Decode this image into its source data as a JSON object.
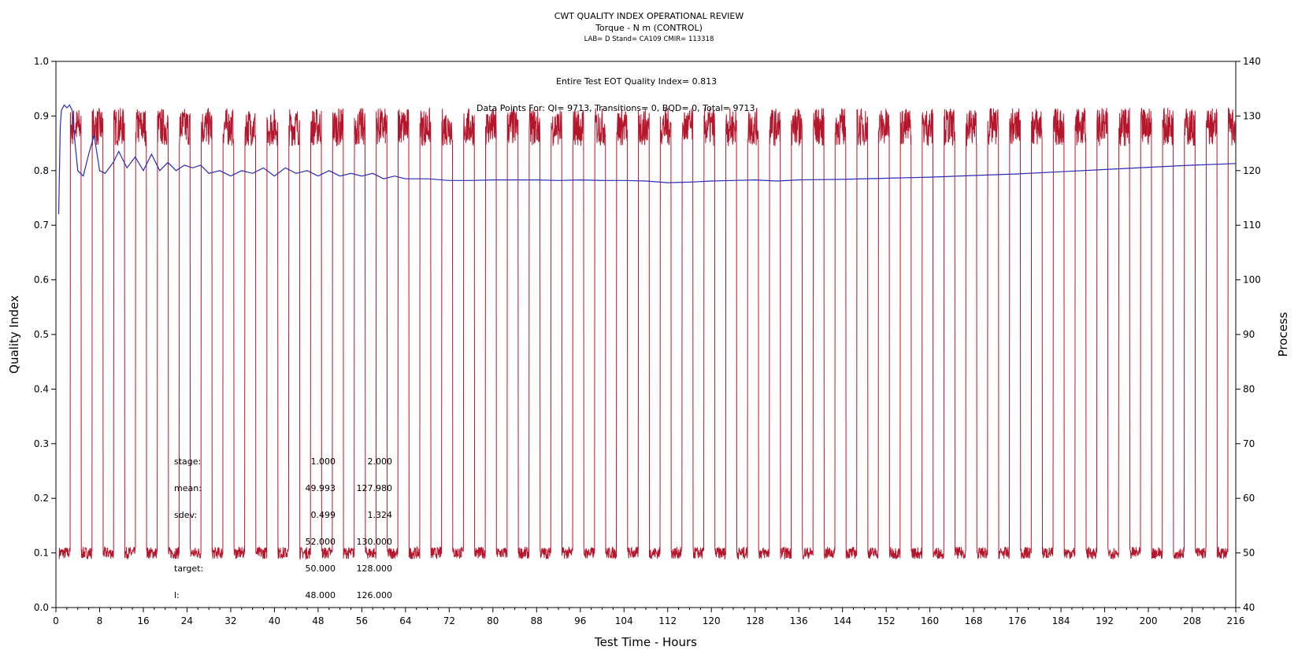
{
  "chart_data": {
    "type": "line",
    "title": "CWT QUALITY INDEX OPERATIONAL REVIEW",
    "subtitle": "Torque - N m (CONTROL)",
    "subtitle2": "LAB= D Stand= CA109 CMIR= 113318",
    "xlabel": "Test Time - Hours",
    "ylabel": "Quality Index",
    "y2label": "Process",
    "xlim": [
      0,
      216
    ],
    "ylim": [
      0,
      1.0
    ],
    "y2lim": [
      40,
      140
    ],
    "xticks": [
      "0",
      "8",
      "16",
      "24",
      "32",
      "40",
      "48",
      "56",
      "64",
      "72",
      "80",
      "88",
      "96",
      "104",
      "112",
      "120",
      "128",
      "136",
      "144",
      "152",
      "160",
      "168",
      "176",
      "184",
      "192",
      "200",
      "208",
      "216"
    ],
    "yticks": [
      "0.0",
      "0.1",
      "0.2",
      "0.3",
      "0.4",
      "0.5",
      "0.6",
      "0.7",
      "0.8",
      "0.9",
      "1.0"
    ],
    "y2ticks": [
      "40",
      "50",
      "60",
      "70",
      "80",
      "90",
      "100",
      "110",
      "120",
      "130",
      "140"
    ],
    "grid": false,
    "annotations": {
      "qi_summary": "Entire Test EOT Quality Index=  0.813",
      "data_points": "Data Points For: QI=  9713, Transitions=    0, BQD=    0, Total=  9713"
    },
    "stats_table": [
      {
        "label": "stage:",
        "v1": "1.000",
        "v2": "2.000"
      },
      {
        "label": "mean:",
        "v1": "49.993",
        "v2": "127.980"
      },
      {
        "label": "sdev:",
        "v1": "0.499",
        "v2": "1.324"
      },
      {
        "label": "",
        "v1": "52.000",
        "v2": "130.000"
      },
      {
        "label": "target:",
        "v1": "50.000",
        "v2": "128.000"
      },
      {
        "label": "l:",
        "v1": "48.000",
        "v2": "126.000"
      }
    ],
    "series": [
      {
        "axis": "right",
        "color": "#b5162b",
        "cycle_hours": 4,
        "low_value": 50,
        "high_value": 128,
        "start_hour": 0.6,
        "end_hour": 216
      },
      {
        "axis": "left",
        "color": "#2a2ab8",
        "x": [
          0.5,
          0.8,
          1.0,
          1.5,
          2.0,
          2.5,
          3.0,
          3.5,
          4.0,
          5.0,
          6.0,
          7.0,
          8.0,
          9.0,
          10.5,
          11.5,
          13.0,
          14.5,
          16.0,
          17.5,
          19.0,
          20.5,
          22.0,
          23.5,
          25.0,
          26.5,
          28.0,
          30.0,
          32.0,
          34.0,
          36.0,
          38.0,
          40.0,
          42.0,
          44.0,
          46.0,
          48.0,
          50.0,
          52.0,
          54.0,
          56.0,
          58.0,
          60.0,
          62.0,
          64.0,
          68.0,
          72.0,
          76.0,
          80.0,
          84.0,
          88.0,
          92.0,
          96.0,
          100.0,
          104.0,
          108.0,
          112.0,
          116.0,
          120.0,
          124.0,
          128.0,
          132.0,
          136.0,
          144.0,
          152.0,
          160.0,
          168.0,
          176.0,
          184.0,
          192.0,
          200.0,
          208.0,
          216.0
        ],
        "values": [
          0.72,
          0.88,
          0.91,
          0.92,
          0.915,
          0.92,
          0.91,
          0.85,
          0.8,
          0.79,
          0.83,
          0.865,
          0.8,
          0.795,
          0.815,
          0.835,
          0.805,
          0.825,
          0.8,
          0.83,
          0.8,
          0.815,
          0.8,
          0.81,
          0.805,
          0.81,
          0.795,
          0.8,
          0.79,
          0.8,
          0.795,
          0.805,
          0.79,
          0.805,
          0.795,
          0.8,
          0.79,
          0.8,
          0.79,
          0.795,
          0.79,
          0.795,
          0.785,
          0.79,
          0.785,
          0.785,
          0.782,
          0.782,
          0.783,
          0.783,
          0.783,
          0.782,
          0.783,
          0.782,
          0.782,
          0.781,
          0.778,
          0.779,
          0.781,
          0.782,
          0.783,
          0.781,
          0.783,
          0.784,
          0.786,
          0.788,
          0.791,
          0.794,
          0.798,
          0.802,
          0.806,
          0.81,
          0.813
        ]
      }
    ]
  }
}
